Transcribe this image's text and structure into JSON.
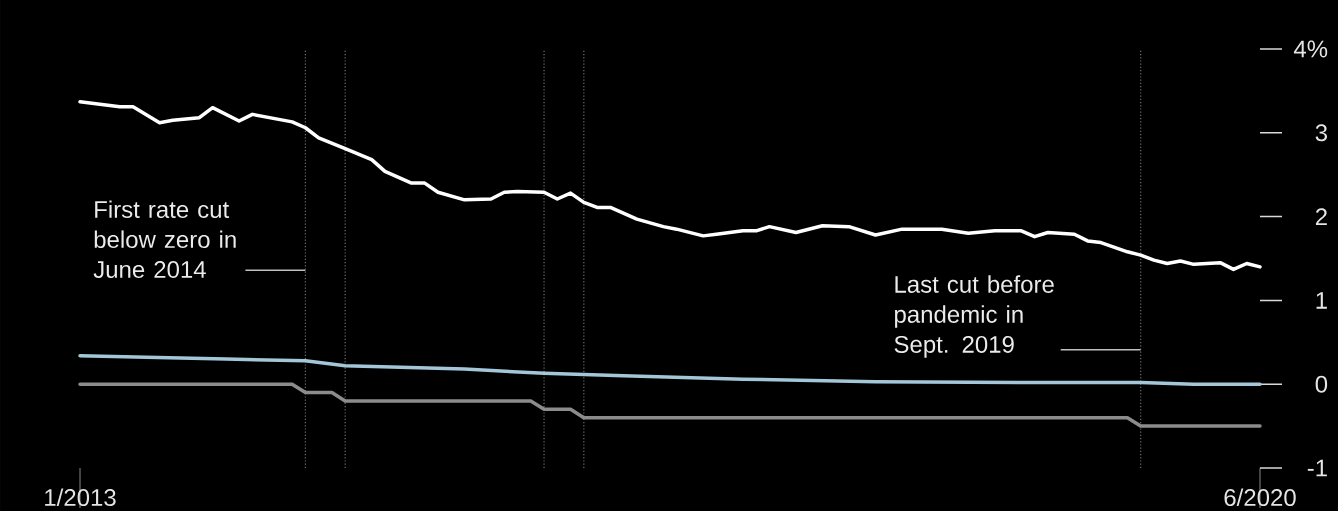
{
  "chart_data": {
    "type": "line",
    "xlim": [
      "2013-01",
      "2020-06"
    ],
    "xticks": [
      {
        "value": "2013-01",
        "label": "1/2013"
      },
      {
        "value": "2020-06",
        "label": "6/2020"
      }
    ],
    "ylim": [
      -1,
      4
    ],
    "yticks": [
      -1,
      0,
      1,
      2,
      3,
      {
        "value": 4,
        "label": "4%"
      }
    ],
    "grid": false,
    "line_style": "solid",
    "marker": "none",
    "series": [
      {
        "color": "#ffffff",
        "x": [
          "2013-01",
          "2013-04",
          "2013-05",
          "2013-07",
          "2013-08",
          "2013-10",
          "2013-11",
          "2014-01",
          "2014-02",
          "2014-05",
          "2014-06",
          "2014-07",
          "2014-09",
          "2014-11",
          "2014-12",
          "2015-02",
          "2015-03",
          "2015-04",
          "2015-06",
          "2015-08",
          "2015-09",
          "2015-10",
          "2015-12",
          "2016-01",
          "2016-02",
          "2016-03",
          "2016-04",
          "2016-05",
          "2016-07",
          "2016-09",
          "2016-10",
          "2016-12",
          "2017-01",
          "2017-03",
          "2017-04",
          "2017-05",
          "2017-07",
          "2017-09",
          "2017-11",
          "2018-01",
          "2018-03",
          "2018-06",
          "2018-08",
          "2018-10",
          "2018-12",
          "2019-01",
          "2019-02",
          "2019-04",
          "2019-05",
          "2019-06",
          "2019-08",
          "2019-09",
          "2019-10",
          "2019-11",
          "2019-12",
          "2020-01",
          "2020-03",
          "2020-04",
          "2020-05",
          "2020-06"
        ],
        "values": [
          3.37,
          3.31,
          3.31,
          3.12,
          3.15,
          3.18,
          3.3,
          3.14,
          3.22,
          3.13,
          3.06,
          2.94,
          2.81,
          2.68,
          2.54,
          2.4,
          2.4,
          2.29,
          2.2,
          2.21,
          2.29,
          2.3,
          2.29,
          2.21,
          2.28,
          2.17,
          2.11,
          2.11,
          1.97,
          1.88,
          1.85,
          1.77,
          1.79,
          1.83,
          1.83,
          1.88,
          1.81,
          1.89,
          1.88,
          1.78,
          1.85,
          1.85,
          1.8,
          1.83,
          1.83,
          1.76,
          1.81,
          1.79,
          1.71,
          1.69,
          1.58,
          1.54,
          1.48,
          1.44,
          1.47,
          1.43,
          1.45,
          1.37,
          1.44,
          1.4
        ]
      },
      {
        "color": "#a3c6d9",
        "x": [
          "2013-01",
          "2013-06",
          "2013-12",
          "2014-06",
          "2014-09",
          "2015-06",
          "2015-12",
          "2016-06",
          "2017-03",
          "2018-01",
          "2019-01",
          "2019-09",
          "2020-01",
          "2020-06"
        ],
        "values": [
          0.34,
          0.32,
          0.3,
          0.28,
          0.22,
          0.18,
          0.13,
          0.1,
          0.06,
          0.03,
          0.02,
          0.02,
          0.0,
          0.0
        ]
      },
      {
        "color": "#8c8c8c",
        "x": [
          "2013-01",
          "2014-05",
          "2014-06",
          "2014-08",
          "2014-09",
          "2015-11",
          "2015-12",
          "2016-02",
          "2016-03",
          "2019-08",
          "2019-09",
          "2020-06"
        ],
        "values": [
          0,
          0,
          -0.1,
          -0.1,
          -0.2,
          -0.2,
          -0.3,
          -0.3,
          -0.4,
          -0.4,
          -0.5,
          -0.5
        ]
      }
    ],
    "ref_lines": [
      {
        "axis": "x",
        "value": "2014-06",
        "color": "#707070",
        "line_style": "dotted"
      },
      {
        "axis": "x",
        "value": "2014-09",
        "color": "#707070",
        "line_style": "dotted"
      },
      {
        "axis": "x",
        "value": "2015-12",
        "color": "#707070",
        "line_style": "dotted"
      },
      {
        "axis": "x",
        "value": "2016-03",
        "color": "#707070",
        "line_style": "dotted"
      },
      {
        "axis": "x",
        "value": "2019-09",
        "color": "#707070",
        "line_style": "dotted"
      }
    ],
    "annotations": [
      {
        "text": "First rate cut below zero in June 2014",
        "x": "2014-06",
        "y": 1.36
      },
      {
        "text": "Last cut before pandemic in Sept. 2019",
        "x": "2019-09",
        "y": 0.41
      }
    ]
  }
}
